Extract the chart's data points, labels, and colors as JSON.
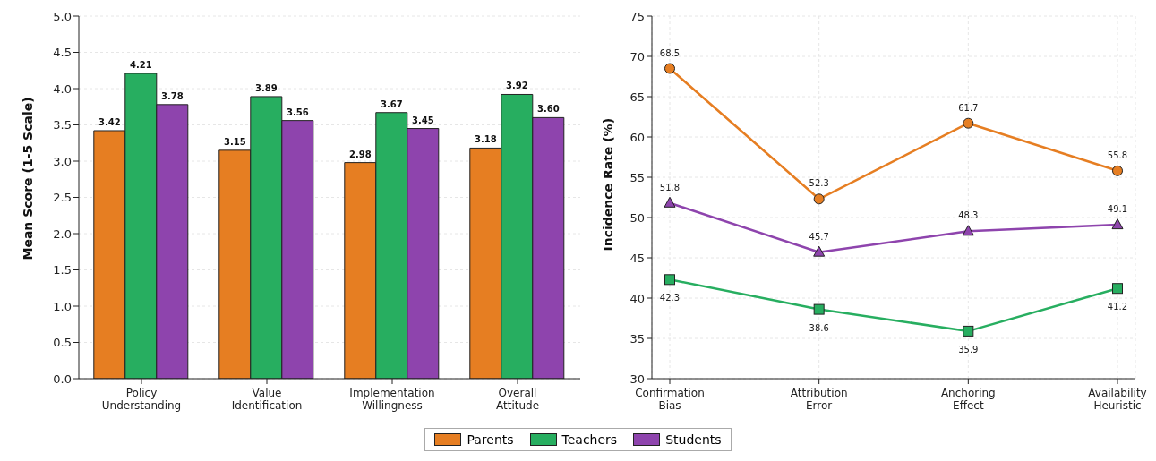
{
  "chart_data": [
    {
      "type": "bar",
      "ylabel": "Mean Score (1-5 Scale)",
      "categories": [
        "Policy Understanding",
        "Value Identification",
        "Implementation Willingness",
        "Overall Attitude"
      ],
      "series": [
        {
          "name": "Parents",
          "color": "#e67e22",
          "values": [
            3.42,
            3.15,
            2.98,
            3.18
          ],
          "value_labels": [
            "3.42",
            "3.15",
            "2.98",
            "3.18"
          ]
        },
        {
          "name": "Teachers",
          "color": "#27ae60",
          "values": [
            4.21,
            3.89,
            3.67,
            3.92
          ],
          "value_labels": [
            "4.21",
            "3.89",
            "3.67",
            "3.92"
          ]
        },
        {
          "name": "Students",
          "color": "#8e44ad",
          "values": [
            3.78,
            3.56,
            3.45,
            3.6
          ],
          "value_labels": [
            "3.78",
            "3.56",
            "3.45",
            "3.60"
          ]
        }
      ],
      "ylim": [
        0,
        5
      ],
      "yticks": [
        {
          "value": 0,
          "label": "0.0"
        },
        {
          "value": 0.5,
          "label": "0.5"
        },
        {
          "value": 1,
          "label": "1.0"
        },
        {
          "value": 1.5,
          "label": "1.5"
        },
        {
          "value": 2,
          "label": "2.0"
        },
        {
          "value": 2.5,
          "label": "2.5"
        },
        {
          "value": 3,
          "label": "3.0"
        },
        {
          "value": 3.5,
          "label": "3.5"
        },
        {
          "value": 4,
          "label": "4.0"
        },
        {
          "value": 4.5,
          "label": "4.5"
        },
        {
          "value": 5,
          "label": "5.0"
        }
      ],
      "grid": "y",
      "legend": "bottom"
    },
    {
      "type": "line",
      "ylabel": "Incidence Rate (%)",
      "categories": [
        "Confirmation Bias",
        "Attribution Error",
        "Anchoring Effect",
        "Availability Heuristic"
      ],
      "series": [
        {
          "color": "#e67e22",
          "values": [
            68.5,
            52.3,
            61.7,
            55.8
          ],
          "marker": "circle"
        },
        {
          "color": "#27ae60",
          "values": [
            42.3,
            38.6,
            35.9,
            41.2
          ],
          "marker": "square"
        },
        {
          "color": "#8e44ad",
          "values": [
            51.8,
            45.7,
            48.3,
            49.1
          ],
          "marker": "triangle"
        }
      ],
      "ylim": [
        30,
        75
      ],
      "yticks": [
        30,
        35,
        40,
        45,
        50,
        55,
        60,
        65,
        70,
        75
      ],
      "grid": true,
      "data_labels": true,
      "line_style": "solid"
    }
  ]
}
